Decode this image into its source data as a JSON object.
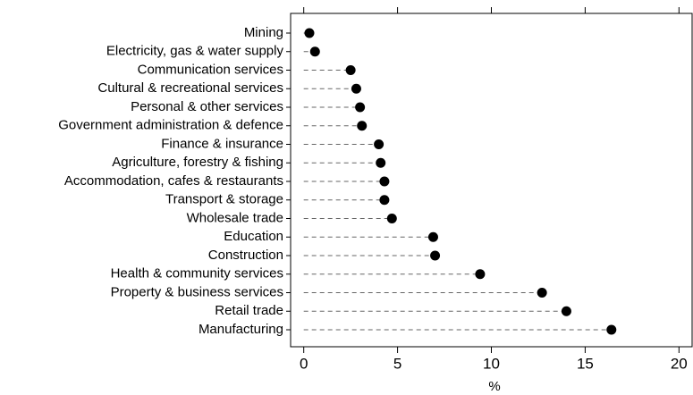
{
  "chart_data": {
    "type": "dot",
    "xlabel": "%",
    "categories": [
      "Mining",
      "Electricity, gas & water supply",
      "Communication services",
      "Cultural & recreational services",
      "Personal & other services",
      "Government administration & defence",
      "Finance & insurance",
      "Agriculture, forestry & fishing",
      "Accommodation, cafes & restaurants",
      "Transport & storage",
      "Wholesale trade",
      "Education",
      "Construction",
      "Health & community services",
      "Property & business services",
      "Retail trade",
      "Manufacturing"
    ],
    "values": [
      0.3,
      0.6,
      2.5,
      2.8,
      3.0,
      3.1,
      4.0,
      4.1,
      4.3,
      4.3,
      4.7,
      6.9,
      7.0,
      9.4,
      12.7,
      14.0,
      16.4
    ],
    "color": "#000000",
    "xlim": [
      -0.7,
      20.7
    ],
    "xticks": [
      0,
      5,
      10,
      15,
      20
    ]
  }
}
